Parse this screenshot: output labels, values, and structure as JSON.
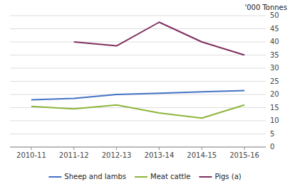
{
  "chart_data": {
    "type": "line",
    "ylabel": "'000 Tonnes",
    "categories": [
      "2010-11",
      "2011-12",
      "2012-13",
      "2013-14",
      "2014-15",
      "2015-16"
    ],
    "series": [
      {
        "name": "Sheep and lambs",
        "color": "#4472c4",
        "values": [
          18.0,
          18.5,
          20.0,
          20.5,
          21.0,
          21.5
        ]
      },
      {
        "name": "Meat cattle",
        "color": "#8db53c",
        "values": [
          15.5,
          14.5,
          16.0,
          13.0,
          11.0,
          16.0
        ]
      },
      {
        "name": "Pigs (a)",
        "color": "#7f3060",
        "values": [
          null,
          40.0,
          38.5,
          47.5,
          40.0,
          35.0
        ]
      }
    ],
    "ylim": [
      0,
      50
    ],
    "yticks": [
      0,
      5,
      10,
      15,
      20,
      25,
      30,
      35,
      40,
      45,
      50
    ],
    "grid": true,
    "legend": "bottom"
  }
}
